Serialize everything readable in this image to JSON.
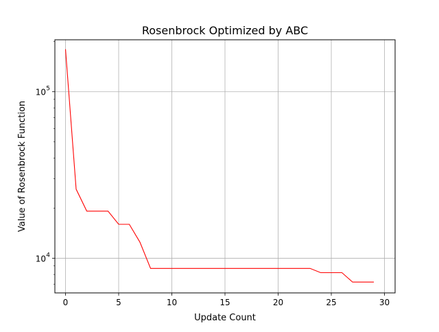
{
  "chart_data": {
    "type": "line",
    "title": "Rosenbrock Optimized by ABC",
    "xlabel": "Update Count",
    "ylabel": "Value of Rosenbrock Function",
    "xlim": [
      -1,
      31
    ],
    "ylim": [
      6200,
      205000
    ],
    "yscale": "log",
    "grid": true,
    "x_ticks": [
      0,
      5,
      10,
      15,
      20,
      25,
      30
    ],
    "x_tick_labels": [
      "0",
      "5",
      "10",
      "15",
      "20",
      "25",
      "30"
    ],
    "y_ticks": [
      {
        "value": 10000,
        "base": "10",
        "exp": "4"
      },
      {
        "value": 100000,
        "base": "10",
        "exp": "5"
      }
    ],
    "series": [
      {
        "color": "#ff0000",
        "x": [
          0,
          1,
          2,
          3,
          4,
          5,
          6,
          7,
          8,
          9,
          10,
          11,
          12,
          13,
          14,
          15,
          16,
          17,
          18,
          19,
          20,
          21,
          22,
          23,
          24,
          25,
          26,
          27,
          28,
          29
        ],
        "y": [
          180000,
          26000,
          19200,
          19200,
          19200,
          16000,
          16000,
          12500,
          8700,
          8700,
          8700,
          8700,
          8700,
          8700,
          8700,
          8700,
          8700,
          8700,
          8700,
          8700,
          8700,
          8700,
          8700,
          8700,
          8200,
          8200,
          8200,
          7200,
          7200,
          7200
        ]
      }
    ]
  }
}
